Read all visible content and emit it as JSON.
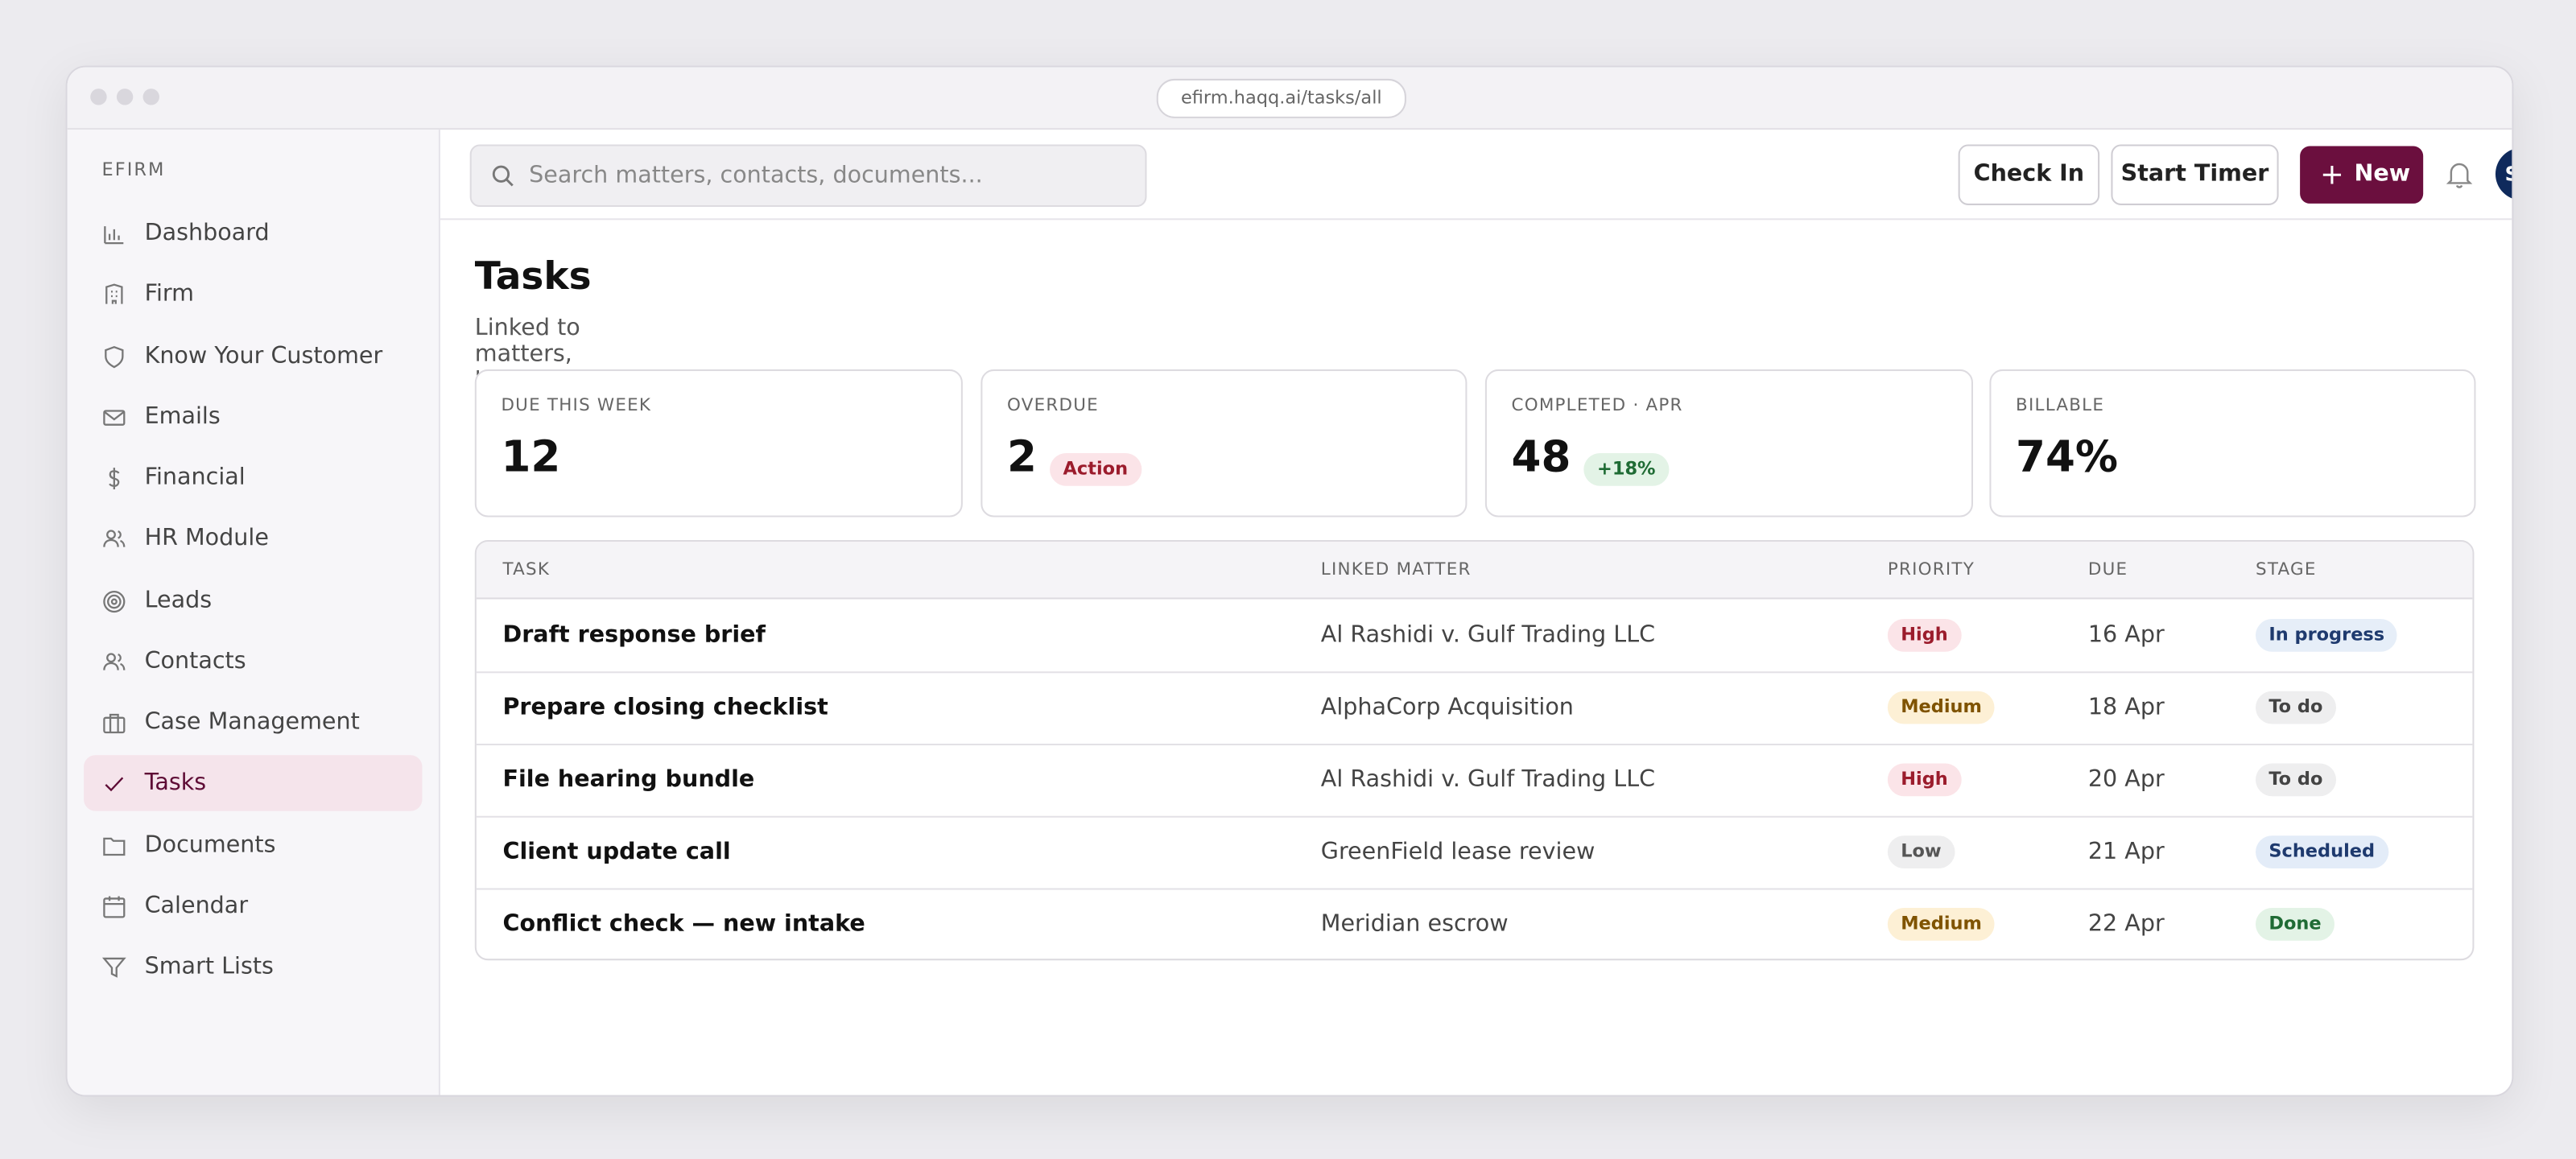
{
  "browser": {
    "url": "efirm.haqq.ai/tasks/all"
  },
  "sidebar": {
    "brand": "EFIRM",
    "active": 9,
    "items": [
      "Dashboard",
      "Firm",
      "Know Your Customer",
      "Emails",
      "Financial",
      "HR Module",
      "Leads",
      "Contacts",
      "Case Management",
      "Tasks",
      "Documents",
      "Calendar",
      "Smart Lists"
    ]
  },
  "header": {
    "search_placeholder": "Search matters, contacts, documents...",
    "buttons": [
      "Check In",
      "Start Timer"
    ],
    "primary_button": "New",
    "avatar": "SM"
  },
  "page": {
    "title": "Tasks",
    "subtitle": "Linked to matters, hearings & deadlines"
  },
  "stats": [
    {
      "label": "DUE THIS WEEK",
      "value": "12"
    },
    {
      "label": "OVERDUE",
      "value": "2",
      "badge": "Action"
    },
    {
      "label": "COMPLETED · APR",
      "value": "48",
      "badge": "+18%"
    },
    {
      "label": "BILLABLE",
      "value": "74%"
    }
  ],
  "table": {
    "headers": [
      "TASK",
      "LINKED MATTER",
      "PRIORITY",
      "DUE",
      "STAGE"
    ],
    "rows": [
      [
        "Draft response brief",
        "Al Rashidi v. Gulf Trading LLC",
        "High",
        "16 Apr",
        "In progress"
      ],
      [
        "Prepare closing checklist",
        "AlphaCorp Acquisition",
        "Medium",
        "18 Apr",
        "To do"
      ],
      [
        "File hearing bundle",
        "Al Rashidi v. Gulf Trading LLC",
        "High",
        "20 Apr",
        "To do"
      ],
      [
        "Client update call",
        "GreenField lease review",
        "Low",
        "21 Apr",
        "Scheduled"
      ],
      [
        "Conflict check — new intake",
        "Meridian escrow",
        "Medium",
        "22 Apr",
        "Done"
      ]
    ]
  }
}
